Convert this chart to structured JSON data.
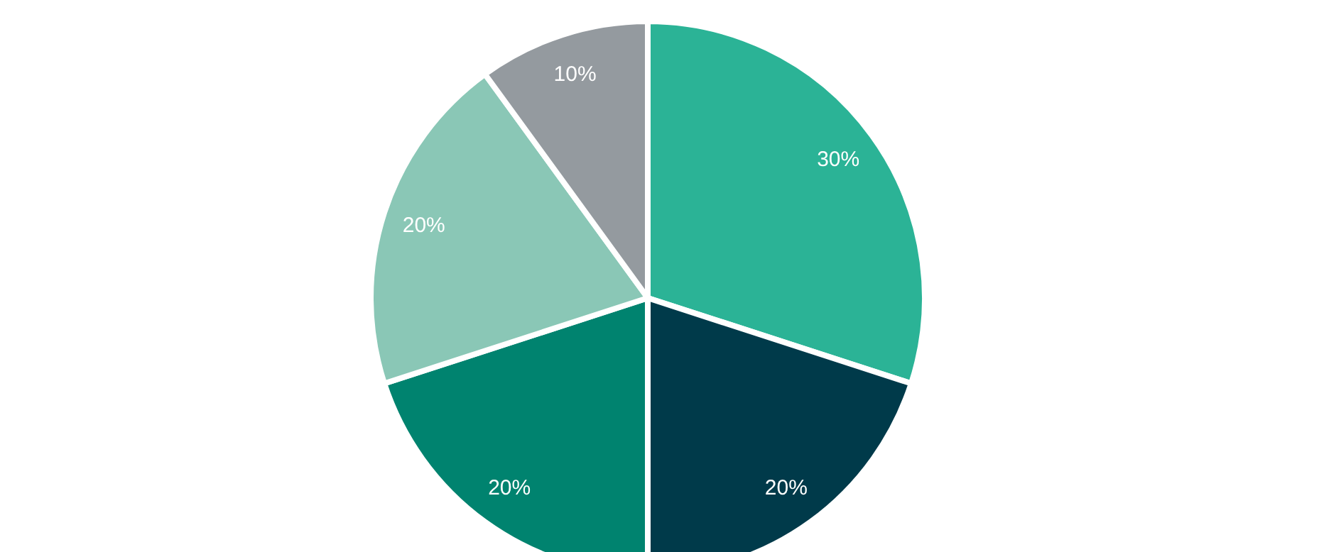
{
  "chart_data": {
    "type": "pie",
    "categories": [
      null,
      null,
      null,
      null,
      null
    ],
    "values": [
      30,
      20,
      20,
      20,
      10
    ],
    "colors": [
      "#2bb396",
      "#003a4a",
      "#00836f",
      "#8ac7b6",
      "#949a9f"
    ],
    "value_labels": [
      "30%",
      "20%",
      "20%",
      "20%",
      "10%"
    ]
  }
}
